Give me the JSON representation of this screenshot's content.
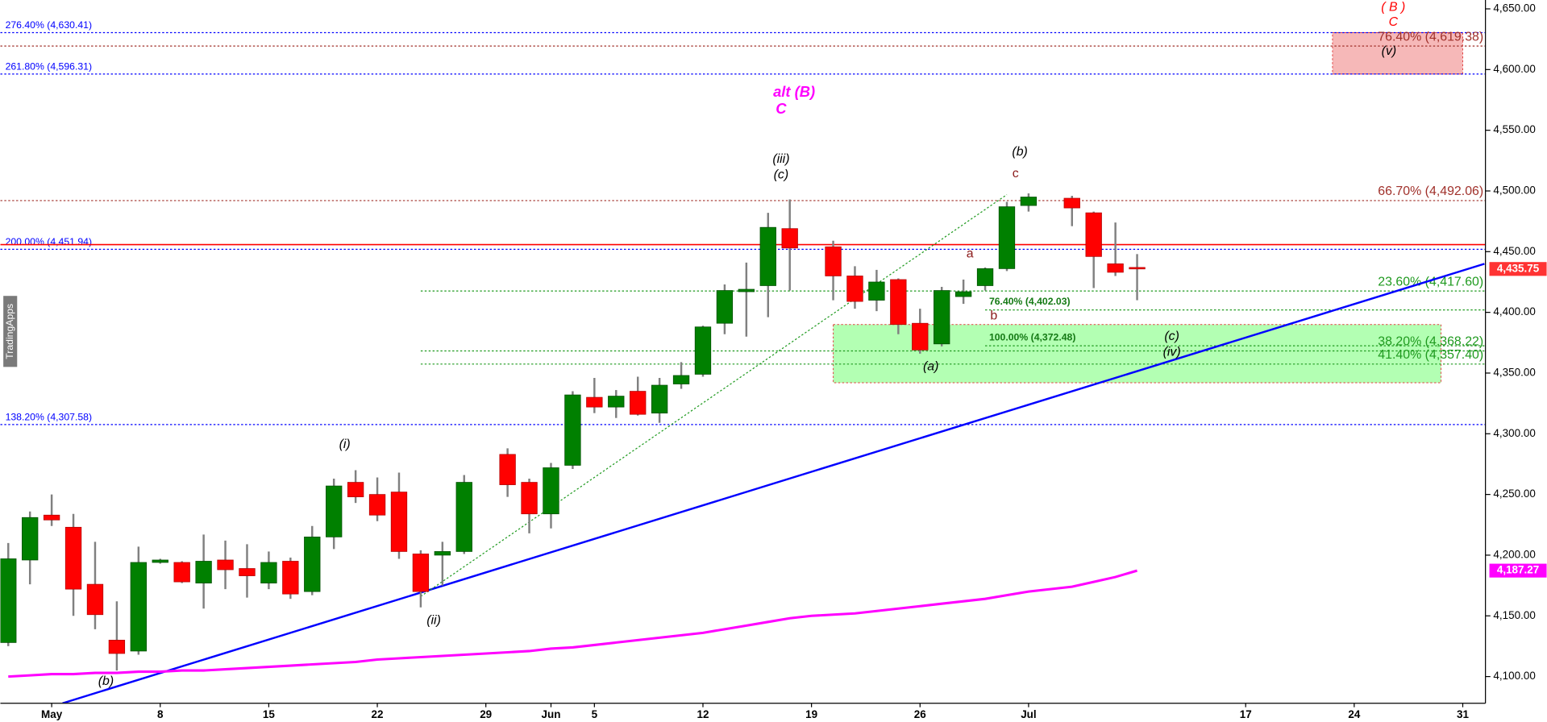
{
  "chart_data": {
    "type": "candlestick",
    "watermark": "TradingApps",
    "categories": [
      null,
      null,
      "May",
      null,
      null,
      null,
      null,
      "8",
      null,
      null,
      null,
      null,
      "15",
      null,
      null,
      null,
      null,
      "22",
      null,
      null,
      null,
      null,
      "29",
      null,
      null,
      "Jun",
      null,
      "5",
      null,
      null,
      null,
      null,
      "12",
      null,
      null,
      null,
      null,
      "19",
      null,
      null,
      null,
      null,
      "26",
      null,
      null,
      null,
      null,
      "Jul",
      null,
      null,
      null,
      null,
      null,
      null,
      null,
      null,
      null,
      "17",
      null,
      null,
      null,
      null,
      "24",
      null,
      null,
      null,
      null,
      "31"
    ],
    "open": [
      4128,
      4196,
      4233,
      4223,
      4176,
      4130,
      4121,
      4194,
      4194,
      4177,
      4196,
      4189,
      4177,
      4195,
      4170,
      4215,
      4260,
      4250,
      4252,
      4201,
      4200,
      4203,
      null,
      4283,
      4260,
      4234,
      4274,
      4330,
      4322,
      4335,
      4317,
      4341,
      4349,
      4391,
      4417,
      4422,
      4469,
      null,
      4454,
      4430,
      4410,
      4427,
      4391,
      4374,
      4413,
      4422,
      4436,
      4488,
      null,
      4494,
      4482,
      4440,
      4437,
      null,
      null,
      null,
      null,
      null,
      null,
      null,
      null,
      null,
      null,
      null,
      null,
      null,
      null,
      null
    ],
    "high": [
      4210,
      4236,
      4250,
      4234,
      4211,
      4162,
      4207,
      4197,
      4195,
      4217,
      4212,
      4209,
      4203,
      4198,
      4224,
      4263,
      4270,
      4264,
      4268,
      4204,
      4211,
      4266,
      null,
      4288,
      4263,
      4276,
      4335,
      4346,
      4336,
      4347,
      4346,
      4359,
      4389,
      4423,
      4441,
      4482,
      4493,
      null,
      4459,
      4438,
      4435,
      4428,
      4403,
      4421,
      4427,
      4437,
      4491,
      4498,
      null,
      4496,
      4483,
      4474,
      4448,
      null,
      null,
      null,
      null,
      null,
      null,
      null,
      null,
      null,
      null,
      null,
      null,
      null,
      null,
      null
    ],
    "low": [
      4125,
      4176,
      4224,
      4150,
      4139,
      4105,
      4118,
      4193,
      4177,
      4156,
      4172,
      4165,
      4172,
      4164,
      4167,
      4205,
      4243,
      4228,
      4197,
      4157,
      4175,
      4201,
      null,
      4248,
      4218,
      4222,
      4271,
      4317,
      4313,
      4315,
      4309,
      4337,
      4347,
      4382,
      4380,
      4396,
      4418,
      null,
      4410,
      4403,
      4401,
      4382,
      4366,
      4372,
      4407,
      4418,
      4434,
      4483,
      null,
      4471,
      4420,
      4430,
      4410,
      null,
      null,
      null,
      null,
      null,
      null,
      null,
      null,
      null,
      null,
      null,
      null,
      null,
      null,
      null
    ],
    "close": [
      4197,
      4231,
      4229,
      4172,
      4151,
      4119,
      4194,
      4196,
      4178,
      4195,
      4188,
      4183,
      4194,
      4168,
      4215,
      4257,
      4248,
      4233,
      4203,
      4170,
      4203,
      4260,
      null,
      4258,
      4234,
      4272,
      4332,
      4322,
      4331,
      4316,
      4340,
      4348,
      4388,
      4418,
      4419,
      4470,
      4453,
      null,
      4430,
      4409,
      4425,
      4390,
      4369,
      4418,
      4417,
      4436,
      4487,
      4495,
      null,
      4486,
      4446,
      4433,
      4435.75,
      null,
      null,
      null,
      null,
      null,
      null,
      null,
      null,
      null,
      null,
      null,
      null,
      null,
      null,
      null
    ],
    "up_color": "#008000",
    "down_color": "#ff0000",
    "wick_color": "#808080",
    "ma": {
      "color": "#ff00ff",
      "values": [
        4100,
        4101,
        4102,
        4102,
        4103,
        4103,
        4104,
        4104,
        4105,
        4105,
        4106,
        4107,
        4108,
        4109,
        4110,
        4111,
        4112,
        4114,
        4115,
        4116,
        4117,
        4118,
        4119,
        4120,
        4121,
        4123,
        4124,
        4126,
        4128,
        4130,
        4132,
        4134,
        4136,
        4139,
        4142,
        4145,
        4148,
        4150,
        4151,
        4152,
        4154,
        4156,
        4158,
        4160,
        4162,
        4164,
        4167,
        4170,
        4172,
        4174,
        4178,
        4182,
        4187.27,
        null,
        null,
        null,
        null,
        null,
        null,
        null,
        null,
        null,
        null,
        null,
        null,
        null,
        null,
        null
      ]
    },
    "ylim": [
      4078,
      4657.3
    ],
    "yticks": [
      {
        "value": 4100,
        "label": "4,100.00"
      },
      {
        "value": 4150,
        "label": "4,150.00"
      },
      {
        "value": 4200,
        "label": "4,200.00"
      },
      {
        "value": 4250,
        "label": "4,250.00"
      },
      {
        "value": 4300,
        "label": "4,300.00"
      },
      {
        "value": 4350,
        "label": "4,350.00"
      },
      {
        "value": 4400,
        "label": "4,400.00"
      },
      {
        "value": 4450,
        "label": "4,450.00"
      },
      {
        "value": 4500,
        "label": "4,500.00"
      },
      {
        "value": 4550,
        "label": "4,550.00"
      },
      {
        "value": 4600,
        "label": "4,600.00"
      },
      {
        "value": 4650,
        "label": "4,650.00"
      }
    ],
    "zones": [
      {
        "x": [
          38,
          66
        ],
        "y": [
          4342,
          4390
        ],
        "fill": "#b3ffb3",
        "edge": "#e04040"
      },
      {
        "x": [
          61,
          67
        ],
        "y": [
          4596.31,
          4630.41
        ],
        "fill": "#f6b8b8",
        "edge": "#e04040"
      }
    ],
    "levels": [
      {
        "value": 4630.41,
        "label": "276.40% (4,630.41)",
        "color": "#0000ff",
        "dash": true,
        "label_side": "left"
      },
      {
        "value": 4596.31,
        "label": "261.80% (4,596.31)",
        "color": "#0000ff",
        "dash": true,
        "label_side": "left"
      },
      {
        "value": 4451.94,
        "label": "200.00% (4,451.94)",
        "color": "#0000ff",
        "dash": true,
        "label_side": "left"
      },
      {
        "value": 4307.58,
        "label": "138.20% (4,307.58)",
        "color": "#0000ff",
        "dash": true,
        "label_side": "left"
      },
      {
        "value": 4619.38,
        "label": "76.40% (4,619.38)",
        "color": "#a0302a",
        "dash": true,
        "label_side": "right"
      },
      {
        "value": 4492.06,
        "label": "66.70% (4,492.06)",
        "color": "#a0302a",
        "dash": true,
        "label_side": "right"
      },
      {
        "value": 4455.8,
        "color": "#ff0000",
        "dash": false
      },
      {
        "value": 4417.6,
        "label": "23.60% (4,417.60)",
        "color": "#1f9a1f",
        "dash": true,
        "label_side": "right",
        "from": 19
      },
      {
        "value": 4402.03,
        "label": "76.40% (4,402.03)",
        "color": "#1f9a1f",
        "dash": true,
        "label_side": "inline",
        "from": 45
      },
      {
        "value": 4372.48,
        "label": "100.00% (4,372.48)",
        "color": "#1f9a1f",
        "dash": true,
        "label_side": "inline",
        "from": 45
      },
      {
        "value": 4368.22,
        "label": "38.20% (4,368.22)",
        "color": "#1f9a1f",
        "dash": true,
        "label_side": "right",
        "from": 19
      },
      {
        "value": 4357.4,
        "label": "41.40% (4,357.40)",
        "color": "#1f9a1f",
        "dash": true,
        "label_side": "right",
        "from": 19
      }
    ],
    "trendlines": [
      {
        "color": "#0000ff",
        "dash": false,
        "points": [
          [
            2.5,
            4078
          ],
          [
            68,
            4440
          ]
        ]
      },
      {
        "color": "#1f9a1f",
        "dash": true,
        "points": [
          [
            19,
            4166
          ],
          [
            46,
            4497
          ]
        ]
      }
    ],
    "annotations": [
      {
        "text": "( B )",
        "x": 63.8,
        "y": 4651,
        "color": "#ff0000",
        "italic": true
      },
      {
        "text": "C",
        "x": 63.8,
        "y": 4639,
        "color": "#ff0000",
        "italic": true
      },
      {
        "text": "(v)",
        "x": 63.6,
        "y": 4615,
        "color": "#000000",
        "italic": true
      },
      {
        "text": "alt (B)",
        "x": 36.2,
        "y": 4581,
        "color": "#ff00ff",
        "italic": true,
        "bold": true
      },
      {
        "text": "C",
        "x": 35.6,
        "y": 4567,
        "color": "#ff00ff",
        "italic": true,
        "bold": true
      },
      {
        "text": "(iii)",
        "x": 35.6,
        "y": 4526,
        "color": "#000000",
        "italic": true
      },
      {
        "text": "(c)",
        "x": 35.6,
        "y": 4513,
        "color": "#000000",
        "italic": true
      },
      {
        "text": "(b)",
        "x": 46.6,
        "y": 4532,
        "color": "#000000",
        "italic": true
      },
      {
        "text": "c",
        "x": 46.4,
        "y": 4514,
        "color": "#8b1a1a"
      },
      {
        "text": "a",
        "x": 44.3,
        "y": 4448,
        "color": "#8b1a1a"
      },
      {
        "text": "b",
        "x": 45.4,
        "y": 4397,
        "color": "#8b1a1a"
      },
      {
        "text": "(c)",
        "x": 53.6,
        "y": 4380,
        "color": "#000000",
        "italic": true
      },
      {
        "text": "(iv)",
        "x": 53.6,
        "y": 4367,
        "color": "#000000",
        "italic": true
      },
      {
        "text": "(a)",
        "x": 42.5,
        "y": 4355,
        "color": "#000000",
        "italic": true
      },
      {
        "text": "(i)",
        "x": 15.5,
        "y": 4291,
        "color": "#000000",
        "italic": true
      },
      {
        "text": "(ii)",
        "x": 19.6,
        "y": 4146,
        "color": "#000000",
        "italic": true
      },
      {
        "text": "(b)",
        "x": 4.5,
        "y": 4096,
        "color": "#000000",
        "italic": true
      }
    ],
    "price_tags": [
      {
        "value": 4435.75,
        "label": "4,435.75",
        "color": "#ff3333"
      },
      {
        "value": 4187.27,
        "label": "4,187.27",
        "color": "#ff00ff"
      }
    ]
  }
}
